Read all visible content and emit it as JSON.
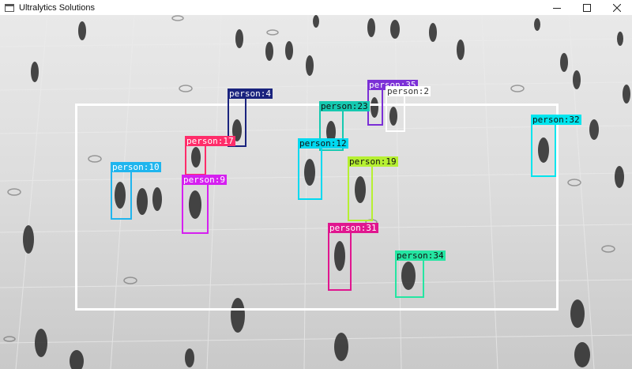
{
  "window": {
    "title": "Ultralytics Solutions",
    "app_icon": "window-icon",
    "controls": [
      "minimize-icon",
      "maximize-icon",
      "close-icon"
    ]
  },
  "region": {
    "color": "#ffffff"
  },
  "detections": [
    {
      "label": "person:4",
      "color": "#1a237e",
      "text_color": "#ffffff"
    },
    {
      "label": "person:35",
      "color": "#7b2fd6",
      "text_color": "#ffffff"
    },
    {
      "label": "person:2",
      "color": "#ffffff",
      "text_color": "#333333"
    },
    {
      "label": "person:23",
      "color": "#16c9b0",
      "text_color": "#111111"
    },
    {
      "label": "person:32",
      "color": "#00e5ee",
      "text_color": "#111111"
    },
    {
      "label": "person:17",
      "color": "#ff2d6a",
      "text_color": "#ffffff"
    },
    {
      "label": "person:12",
      "color": "#00d9f0",
      "text_color": "#111111"
    },
    {
      "label": "person:19",
      "color": "#b6f032",
      "text_color": "#111111"
    },
    {
      "label": "person:10",
      "color": "#1fb5ee",
      "text_color": "#ffffff"
    },
    {
      "label": "person:9",
      "color": "#d520f0",
      "text_color": "#ffffff"
    },
    {
      "label": "person:31",
      "color": "#e0168f",
      "text_color": "#ffffff"
    },
    {
      "label": "person:34",
      "color": "#25e5a2",
      "text_color": "#111111"
    }
  ]
}
